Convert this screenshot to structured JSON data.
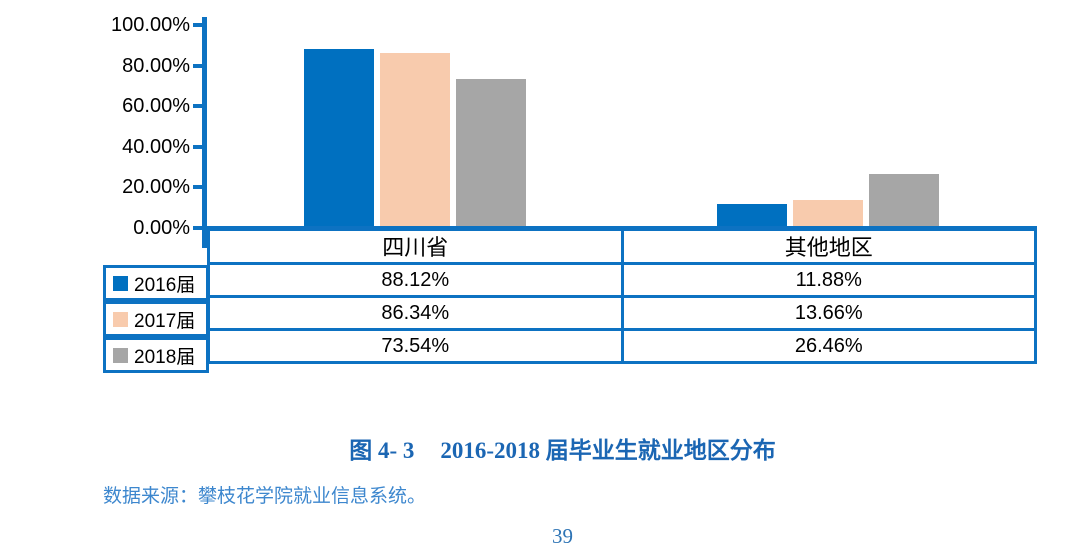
{
  "caption": {
    "prefix": "图 4- 3",
    "title": "2016-2018 届毕业生就业地区分布"
  },
  "source_note": "数据来源：攀枝花学院就业信息系统。",
  "page_number": "39",
  "colors": {
    "bar_blue": "#0070C0",
    "bar_peach": "#F8CBAD",
    "bar_gray": "#A6A6A6",
    "table_border_blue": "#0D72C2",
    "caption_blue": "#1B66B3",
    "source_blue": "#3D87CE",
    "page_number_blue": "#2E74B5"
  },
  "chart_data": {
    "type": "bar",
    "title": "图 4- 3 2016-2018 届毕业生就业地区分布",
    "categories": [
      "四川省",
      "其他地区"
    ],
    "series": [
      {
        "name": "2016届",
        "color": "#0070C0",
        "values": [
          88.12,
          11.88
        ],
        "display": [
          "88.12%",
          "11.88%"
        ]
      },
      {
        "name": "2017届",
        "color": "#F8CBAD",
        "values": [
          86.34,
          13.66
        ],
        "display": [
          "86.34%",
          "13.66%"
        ]
      },
      {
        "name": "2018届",
        "color": "#A6A6A6",
        "values": [
          73.54,
          26.46
        ],
        "display": [
          "73.54%",
          "26.46%"
        ]
      }
    ],
    "y_ticks": [
      {
        "label": "100.00%",
        "value": 100
      },
      {
        "label": "80.00%",
        "value": 80
      },
      {
        "label": "60.00%",
        "value": 60
      },
      {
        "label": "40.00%",
        "value": 40
      },
      {
        "label": "20.00%",
        "value": 20
      },
      {
        "label": "0.00%",
        "value": 0
      }
    ],
    "ylim": [
      0,
      100
    ],
    "grid": false,
    "legend_position": "left-of-data-table",
    "data_table": true
  }
}
